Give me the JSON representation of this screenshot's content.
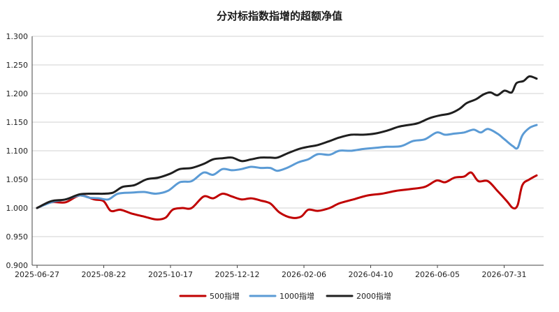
{
  "chart_data": {
    "type": "line",
    "title": "分对标指数指增的超额净值",
    "xlabel": "",
    "ylabel": "",
    "ylim": [
      0.9,
      1.3
    ],
    "yticks": [
      "0.900",
      "0.950",
      "1.000",
      "1.050",
      "1.100",
      "1.150",
      "1.200",
      "1.250",
      "1.300"
    ],
    "x_tick_labels": [
      "2025-06-27",
      "2025-08-22",
      "2025-10-17",
      "2025-12-12",
      "2026-02-06",
      "2026-04-10",
      "2026-06-05",
      "2026-07-31"
    ],
    "grid": "horizontal",
    "legend_position": "bottom",
    "x_start": "2025-06-27",
    "x_end": "2026-08-21",
    "series": [
      {
        "name": "500指增",
        "color": "#c00000",
        "points": [
          [
            "2025-06-27",
            1.0
          ],
          [
            "2025-07-09",
            1.01
          ],
          [
            "2025-07-21",
            1.01
          ],
          [
            "2025-08-02",
            1.022
          ],
          [
            "2025-08-14",
            1.015
          ],
          [
            "2025-08-22",
            1.012
          ],
          [
            "2025-08-28",
            0.995
          ],
          [
            "2025-09-05",
            0.997
          ],
          [
            "2025-09-15",
            0.99
          ],
          [
            "2025-09-25",
            0.985
          ],
          [
            "2025-10-05",
            0.98
          ],
          [
            "2025-10-13",
            0.983
          ],
          [
            "2025-10-19",
            0.997
          ],
          [
            "2025-10-27",
            1.0
          ],
          [
            "2025-11-04",
            1.0
          ],
          [
            "2025-11-14",
            1.02
          ],
          [
            "2025-11-22",
            1.017
          ],
          [
            "2025-11-30",
            1.025
          ],
          [
            "2025-12-08",
            1.02
          ],
          [
            "2025-12-16",
            1.015
          ],
          [
            "2025-12-24",
            1.017
          ],
          [
            "2026-01-01",
            1.013
          ],
          [
            "2026-01-09",
            1.008
          ],
          [
            "2026-01-17",
            0.992
          ],
          [
            "2026-01-27",
            0.983
          ],
          [
            "2026-02-04",
            0.985
          ],
          [
            "2026-02-10",
            0.997
          ],
          [
            "2026-02-18",
            0.995
          ],
          [
            "2026-02-28",
            1.0
          ],
          [
            "2026-03-08",
            1.008
          ],
          [
            "2026-03-20",
            1.015
          ],
          [
            "2026-04-01",
            1.022
          ],
          [
            "2026-04-13",
            1.025
          ],
          [
            "2026-04-25",
            1.03
          ],
          [
            "2026-05-07",
            1.033
          ],
          [
            "2026-05-19",
            1.037
          ],
          [
            "2026-05-29",
            1.048
          ],
          [
            "2026-06-05",
            1.045
          ],
          [
            "2026-06-13",
            1.053
          ],
          [
            "2026-06-21",
            1.055
          ],
          [
            "2026-06-27",
            1.062
          ],
          [
            "2026-07-03",
            1.047
          ],
          [
            "2026-07-11",
            1.047
          ],
          [
            "2026-07-19",
            1.03
          ],
          [
            "2026-07-27",
            1.012
          ],
          [
            "2026-08-01",
            1.0
          ],
          [
            "2026-08-05",
            1.005
          ],
          [
            "2026-08-09",
            1.04
          ],
          [
            "2026-08-15",
            1.05
          ],
          [
            "2026-08-21",
            1.057
          ]
        ]
      },
      {
        "name": "1000指增",
        "color": "#5b9bd5",
        "points": [
          [
            "2025-06-27",
            1.0
          ],
          [
            "2025-07-09",
            1.01
          ],
          [
            "2025-07-21",
            1.015
          ],
          [
            "2025-08-02",
            1.022
          ],
          [
            "2025-08-10",
            1.018
          ],
          [
            "2025-08-18",
            1.017
          ],
          [
            "2025-08-26",
            1.015
          ],
          [
            "2025-09-03",
            1.025
          ],
          [
            "2025-09-15",
            1.027
          ],
          [
            "2025-09-25",
            1.028
          ],
          [
            "2025-10-05",
            1.025
          ],
          [
            "2025-10-15",
            1.03
          ],
          [
            "2025-10-25",
            1.045
          ],
          [
            "2025-11-04",
            1.047
          ],
          [
            "2025-11-14",
            1.062
          ],
          [
            "2025-11-22",
            1.058
          ],
          [
            "2025-11-30",
            1.068
          ],
          [
            "2025-12-08",
            1.066
          ],
          [
            "2025-12-16",
            1.068
          ],
          [
            "2025-12-24",
            1.072
          ],
          [
            "2026-01-01",
            1.07
          ],
          [
            "2026-01-09",
            1.07
          ],
          [
            "2026-01-15",
            1.065
          ],
          [
            "2026-01-23",
            1.07
          ],
          [
            "2026-02-02",
            1.08
          ],
          [
            "2026-02-10",
            1.085
          ],
          [
            "2026-02-18",
            1.094
          ],
          [
            "2026-02-28",
            1.093
          ],
          [
            "2026-03-08",
            1.1
          ],
          [
            "2026-03-18",
            1.1
          ],
          [
            "2026-03-28",
            1.103
          ],
          [
            "2026-04-07",
            1.105
          ],
          [
            "2026-04-17",
            1.107
          ],
          [
            "2026-04-29",
            1.108
          ],
          [
            "2026-05-09",
            1.117
          ],
          [
            "2026-05-19",
            1.12
          ],
          [
            "2026-05-29",
            1.132
          ],
          [
            "2026-06-05",
            1.128
          ],
          [
            "2026-06-13",
            1.13
          ],
          [
            "2026-06-21",
            1.132
          ],
          [
            "2026-06-29",
            1.137
          ],
          [
            "2026-07-05",
            1.132
          ],
          [
            "2026-07-11",
            1.138
          ],
          [
            "2026-07-19",
            1.13
          ],
          [
            "2026-07-25",
            1.12
          ],
          [
            "2026-08-01",
            1.108
          ],
          [
            "2026-08-05",
            1.105
          ],
          [
            "2026-08-09",
            1.127
          ],
          [
            "2026-08-15",
            1.14
          ],
          [
            "2026-08-21",
            1.145
          ]
        ]
      },
      {
        "name": "2000指增",
        "color": "#1f1f1f",
        "points": [
          [
            "2025-06-27",
            1.0
          ],
          [
            "2025-07-09",
            1.012
          ],
          [
            "2025-07-21",
            1.015
          ],
          [
            "2025-08-02",
            1.024
          ],
          [
            "2025-08-14",
            1.025
          ],
          [
            "2025-08-22",
            1.025
          ],
          [
            "2025-08-30",
            1.027
          ],
          [
            "2025-09-07",
            1.037
          ],
          [
            "2025-09-17",
            1.04
          ],
          [
            "2025-09-27",
            1.05
          ],
          [
            "2025-10-07",
            1.053
          ],
          [
            "2025-10-17",
            1.06
          ],
          [
            "2025-10-25",
            1.068
          ],
          [
            "2025-11-04",
            1.07
          ],
          [
            "2025-11-14",
            1.077
          ],
          [
            "2025-11-22",
            1.085
          ],
          [
            "2025-11-30",
            1.087
          ],
          [
            "2025-12-08",
            1.088
          ],
          [
            "2025-12-16",
            1.082
          ],
          [
            "2025-12-24",
            1.085
          ],
          [
            "2026-01-01",
            1.088
          ],
          [
            "2026-01-09",
            1.088
          ],
          [
            "2026-01-15",
            1.088
          ],
          [
            "2026-01-23",
            1.095
          ],
          [
            "2026-02-02",
            1.103
          ],
          [
            "2026-02-10",
            1.107
          ],
          [
            "2026-02-18",
            1.11
          ],
          [
            "2026-02-28",
            1.117
          ],
          [
            "2026-03-08",
            1.123
          ],
          [
            "2026-03-18",
            1.128
          ],
          [
            "2026-03-28",
            1.128
          ],
          [
            "2026-04-07",
            1.13
          ],
          [
            "2026-04-17",
            1.135
          ],
          [
            "2026-04-27",
            1.142
          ],
          [
            "2026-05-05",
            1.145
          ],
          [
            "2026-05-13",
            1.148
          ],
          [
            "2026-05-23",
            1.157
          ],
          [
            "2026-06-01",
            1.162
          ],
          [
            "2026-06-09",
            1.165
          ],
          [
            "2026-06-17",
            1.173
          ],
          [
            "2026-06-23",
            1.183
          ],
          [
            "2026-07-01",
            1.19
          ],
          [
            "2026-07-07",
            1.198
          ],
          [
            "2026-07-13",
            1.202
          ],
          [
            "2026-07-19",
            1.197
          ],
          [
            "2026-07-25",
            1.205
          ],
          [
            "2026-07-31",
            1.202
          ],
          [
            "2026-08-04",
            1.218
          ],
          [
            "2026-08-10",
            1.222
          ],
          [
            "2026-08-15",
            1.23
          ],
          [
            "2026-08-21",
            1.226
          ]
        ]
      }
    ]
  }
}
